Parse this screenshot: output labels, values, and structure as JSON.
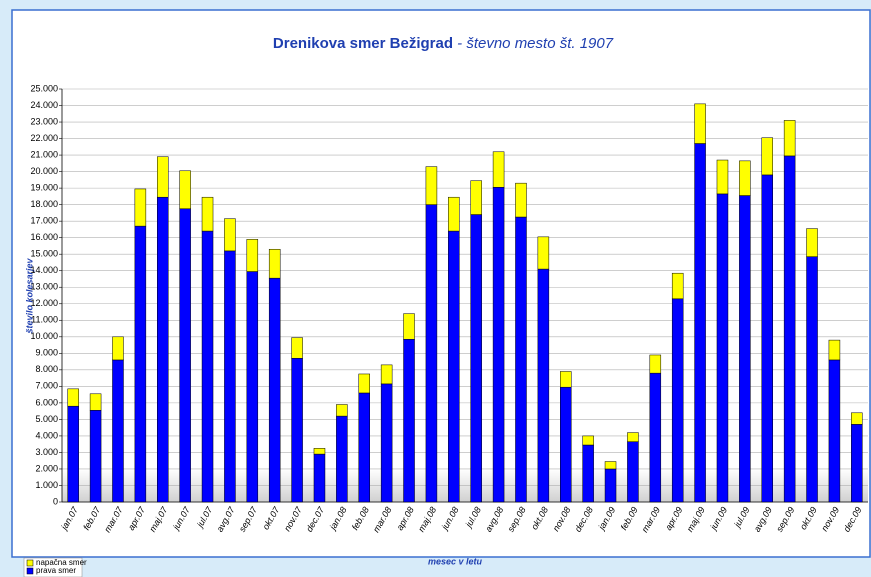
{
  "chart_data": {
    "type": "stacked_bar",
    "title": "Drenikova smer Bežigrad",
    "subtitle": " - števno mesto št. 1907",
    "y_label": "število kolesarjev",
    "x_label": "mesec v letu",
    "categories": [
      "jan.07",
      "feb.07",
      "mar.07",
      "apr.07",
      "maj.07",
      "jun.07",
      "jul.07",
      "avg.07",
      "sep.07",
      "okt.07",
      "nov.07",
      "dec.07",
      "jan.08",
      "feb.08",
      "mar.08",
      "apr.08",
      "maj.08",
      "jun.08",
      "jul.08",
      "avg.08",
      "sep.08",
      "okt.08",
      "nov.08",
      "dec.08",
      "jan.09",
      "feb.09",
      "mar.09",
      "apr.09",
      "maj.09",
      "jun.09",
      "jul.09",
      "avg.09",
      "sep.09",
      "okt.09",
      "nov.09",
      "dec.09"
    ],
    "series": [
      {
        "name": "prava smer",
        "color": "#0000ff",
        "values": [
          5800,
          5550,
          8600,
          16700,
          18450,
          17750,
          16400,
          15200,
          13950,
          13550,
          8700,
          2900,
          5200,
          6600,
          7150,
          9850,
          18000,
          16400,
          17400,
          19050,
          17250,
          14100,
          6950,
          3450,
          2000,
          3650,
          7800,
          12300,
          21700,
          18650,
          18550,
          19800,
          20950,
          14850,
          8600,
          4700
        ]
      },
      {
        "name": "napačna smer",
        "color": "#ffff00",
        "values": [
          1050,
          1000,
          1400,
          2250,
          2450,
          2300,
          2050,
          1950,
          1950,
          1750,
          1250,
          350,
          700,
          1150,
          1150,
          1550,
          2300,
          2050,
          2050,
          2150,
          2050,
          1950,
          950,
          550,
          450,
          550,
          1100,
          1550,
          2400,
          2050,
          2100,
          2250,
          2150,
          1700,
          1200,
          700
        ]
      }
    ],
    "ylim": [
      0,
      25000
    ],
    "yticks": [
      0,
      {
        "value": 1000,
        "label": "1.000"
      },
      {
        "value": 2000,
        "label": "2.000"
      },
      {
        "value": 3000,
        "label": "3.000"
      },
      {
        "value": 4000,
        "label": "4.000"
      },
      {
        "value": 5000,
        "label": "5.000"
      },
      {
        "value": 6000,
        "label": "6.000"
      },
      {
        "value": 7000,
        "label": "7.000"
      },
      {
        "value": 8000,
        "label": "8.000"
      },
      {
        "value": 9000,
        "label": "9.000"
      },
      {
        "value": 10000,
        "label": "10.000"
      },
      {
        "value": 11000,
        "label": "11.000"
      },
      {
        "value": 12000,
        "label": "12.000"
      },
      {
        "value": 13000,
        "label": "13.000"
      },
      {
        "value": 14000,
        "label": "14.000"
      },
      {
        "value": 15000,
        "label": "15.000"
      },
      {
        "value": 16000,
        "label": "16.000"
      },
      {
        "value": 17000,
        "label": "17.000"
      },
      {
        "value": 18000,
        "label": "18.000"
      },
      {
        "value": 19000,
        "label": "19.000"
      },
      {
        "value": 20000,
        "label": "20.000"
      },
      {
        "value": 21000,
        "label": "21.000"
      },
      {
        "value": 22000,
        "label": "22.000"
      },
      {
        "value": 23000,
        "label": "23.000"
      },
      {
        "value": 24000,
        "label": "24.000"
      },
      {
        "value": 25000,
        "label": "25.000"
      }
    ],
    "grid": true
  }
}
